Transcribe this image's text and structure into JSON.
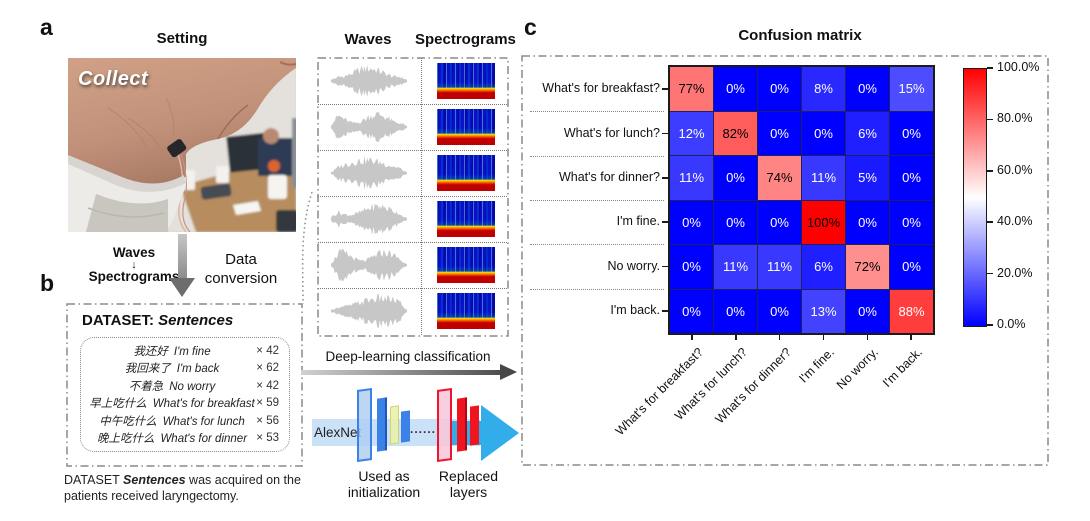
{
  "figure": {
    "panel_a": {
      "label": "a",
      "title": "Setting",
      "photo_overlay": "Collect",
      "conversion_left": {
        "top": "Waves",
        "arrow": "↓",
        "bottom": "Spectrograms"
      },
      "conversion_right": "Data conversion"
    },
    "panel_b": {
      "label": "b",
      "heading_prefix": "DATASET:",
      "heading_name": "Sentences",
      "sentences": [
        {
          "zh": "我还好",
          "en": "I'm fine",
          "count": "× 42"
        },
        {
          "zh": "我回来了",
          "en": "I'm back",
          "count": "× 62"
        },
        {
          "zh": "不着急",
          "en": "No worry",
          "count": "× 42"
        },
        {
          "zh": "早上吃什么",
          "en": "What's for breakfast",
          "count": "× 59"
        },
        {
          "zh": "中午吃什么",
          "en": "What's for lunch",
          "count": "× 56"
        },
        {
          "zh": "晚上吃什么",
          "en": "What's for dinner",
          "count": "× 53"
        }
      ],
      "caption": {
        "prefix": "DATASET ",
        "emph": "Sentences",
        "rest": " was acquired on the patients received laryngectomy."
      }
    },
    "middle": {
      "waves_header": "Waves",
      "spectrograms_header": "Spectrograms",
      "row_count": 6,
      "classification_label": "Deep-learning classification",
      "alexnet_label": "AlexNet",
      "dots": "......",
      "used_as_line1": "Used as",
      "used_as_line2": "initialization",
      "replaced_line1": "Replaced",
      "replaced_line2": "layers"
    },
    "panel_c": {
      "label": "c"
    }
  },
  "chart_data": {
    "type": "heatmap",
    "title": "Confusion matrix",
    "row_labels": [
      "What's for breakfast?",
      "What's for lunch?",
      "What's for dinner?",
      "I'm fine.",
      "No worry.",
      "I'm back."
    ],
    "col_labels": [
      "What's for breakfast?",
      "What's for lunch?",
      "What's for dinner?",
      "I'm fine.",
      "No worry.",
      "I'm back."
    ],
    "matrix": [
      [
        77,
        0,
        0,
        8,
        0,
        15
      ],
      [
        12,
        82,
        0,
        0,
        6,
        0
      ],
      [
        11,
        0,
        74,
        11,
        5,
        0
      ],
      [
        0,
        0,
        0,
        100,
        0,
        0
      ],
      [
        0,
        11,
        11,
        6,
        72,
        0
      ],
      [
        0,
        0,
        0,
        13,
        0,
        88
      ]
    ],
    "cell_suffix": "%",
    "label_colors": [
      [
        "black",
        "white",
        "white",
        "white",
        "white",
        "white"
      ],
      [
        "white",
        "black",
        "white",
        "white",
        "white",
        "white"
      ],
      [
        "white",
        "white",
        "black",
        "white",
        "white",
        "white"
      ],
      [
        "white",
        "white",
        "white",
        "black",
        "white",
        "white"
      ],
      [
        "white",
        "white",
        "white",
        "white",
        "black",
        "white"
      ],
      [
        "white",
        "white",
        "white",
        "white",
        "white",
        "white"
      ]
    ],
    "value_range": [
      0,
      100
    ],
    "colormap": {
      "low": "#0000ff",
      "mid": "#ffffff",
      "high": "#ff0000"
    },
    "colorbar_tick_labels": [
      "100.0%",
      "80.0%",
      "60.0%",
      "40.0%",
      "20.0%",
      "0.0%"
    ],
    "legend_position": "right",
    "grid": false
  }
}
